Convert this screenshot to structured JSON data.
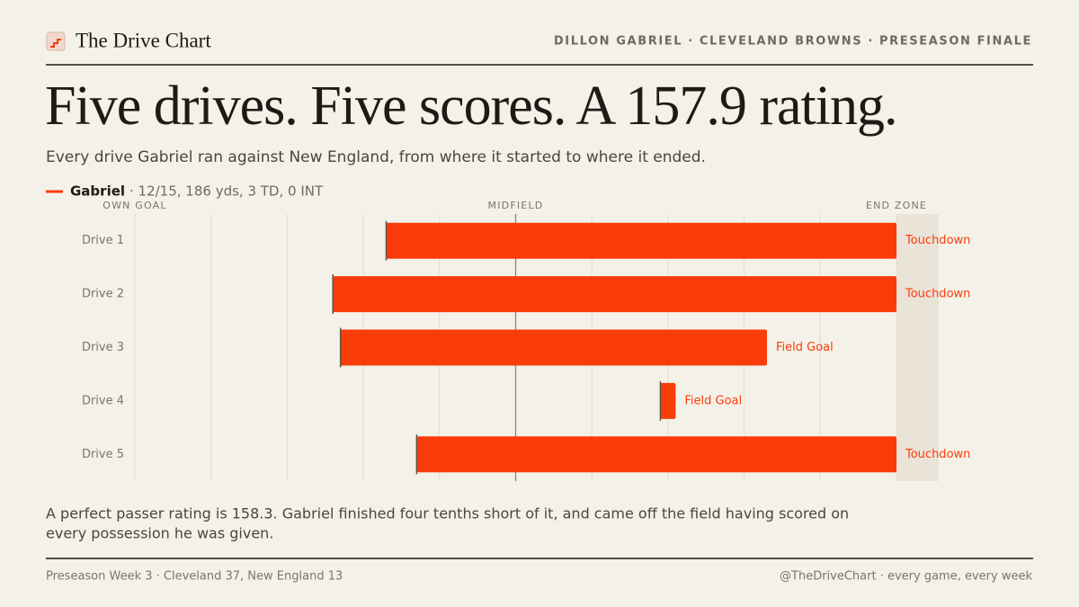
{
  "header": {
    "brand": "The Drive Chart",
    "kicker": "DILLON GABRIEL · CLEVELAND BROWNS · PRESEASON FINALE"
  },
  "chart_data": {
    "type": "floating-bar",
    "title": "Five drives. Five scores. A 157.9 rating.",
    "subtitle": "Every drive Gabriel ran against New England, from where it started to where it ended.",
    "legend": {
      "name": "Gabriel",
      "stat": "· 12/15, 186 yds, 3 TD, 0 INT",
      "color": "#fa3c0a"
    },
    "categories": [
      "Drive 1",
      "Drive 2",
      "Drive 3",
      "Drive 4",
      "Drive 5"
    ],
    "start": [
      33,
      26,
      27,
      69,
      37
    ],
    "end": [
      100,
      100,
      83,
      71,
      100
    ],
    "outcomes": [
      "Touchdown",
      "Touchdown",
      "Field Goal",
      "Field Goal",
      "Touchdown"
    ],
    "color": "#fa3c0a",
    "xlim": [
      0,
      100
    ],
    "xticks": [
      {
        "value": 0,
        "label": "OWN GOAL"
      },
      {
        "value": 10,
        "label": null
      },
      {
        "value": 20,
        "label": null
      },
      {
        "value": 30,
        "label": null
      },
      {
        "value": 40,
        "label": null
      },
      {
        "value": 50,
        "label": "MIDFIELD"
      },
      {
        "value": 60,
        "label": null
      },
      {
        "value": 70,
        "label": null
      },
      {
        "value": 80,
        "label": null
      },
      {
        "value": 90,
        "label": null
      },
      {
        "value": 100,
        "label": "END ZONE"
      }
    ],
    "grid": true,
    "note": [
      "A perfect passer rating is 158.3. Gabriel finished four tenths short of it, and came off the field having scored on",
      "every possession he was given."
    ]
  },
  "footer": {
    "left": "Preseason Week 3 · Cleveland 37, New England 13",
    "right": "@TheDriveChart · every game, every week"
  }
}
